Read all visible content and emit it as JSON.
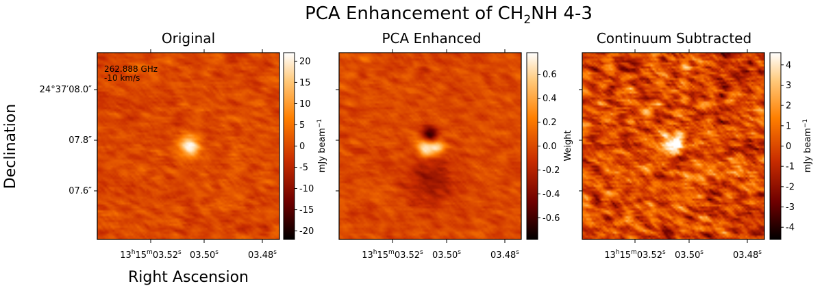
{
  "figure": {
    "title_prefix": "PCA Enhancement of CH",
    "title_sub": "2",
    "title_suffix": "NH 4-3",
    "ylabel": "Declination",
    "xlabel": "Right Ascension"
  },
  "colors": {
    "cmap": [
      "#000000",
      "#6e0000",
      "#c82c00",
      "#ff7f00",
      "#ffc97a",
      "#ffffff"
    ],
    "background_level": 0.56
  },
  "annotation": {
    "line1": "262.888 GHz",
    "line2": "-10 km/s"
  },
  "ra_ticks": {
    "major": {
      "h": "13",
      "m": "15",
      "s": "03.52",
      "hu": "h",
      "mu": "m",
      "su": "s"
    },
    "minor": [
      {
        "v": "03.50",
        "su": "s"
      },
      {
        "v": "03.48",
        "su": "s"
      }
    ]
  },
  "dec_ticks": [
    "24°37′08.0″",
    "07.8″",
    "07.6″"
  ],
  "chart_data": [
    {
      "type": "heatmap",
      "title": "Original",
      "colorbar_label": "mJy beam",
      "colorbar_label_sup": "−1",
      "clim": [
        -22,
        22
      ],
      "colorbar_ticks": [
        "20",
        "15",
        "10",
        "5",
        "0",
        "-5",
        "-10",
        "-15",
        "-20"
      ],
      "colorbar_tick_values": [
        20,
        15,
        10,
        5,
        0,
        -5,
        -10,
        -15,
        -20
      ],
      "noise_rms": 1.6,
      "sources": [
        {
          "ra_offset_arcsec": -0.005,
          "dec_offset_arcsec": 0.0,
          "peak": 22,
          "fwhm_arcsec": 0.06
        }
      ]
    },
    {
      "type": "heatmap",
      "title": "PCA Enhanced",
      "colorbar_label": "Weight",
      "colorbar_label_sup": "",
      "clim": [
        -0.78,
        0.78
      ],
      "colorbar_ticks": [
        "0.6",
        "0.4",
        "0.2",
        "0.0",
        "-0.2",
        "-0.4",
        "-0.6"
      ],
      "colorbar_tick_values": [
        0.6,
        0.4,
        0.2,
        0.0,
        -0.2,
        -0.4,
        -0.6
      ],
      "noise_rms": 0.05,
      "sources": [
        {
          "ra_offset_arcsec": 0.015,
          "dec_offset_arcsec": -0.005,
          "peak": 0.78,
          "fwhm_arcsec": 0.05
        },
        {
          "ra_offset_arcsec": -0.025,
          "dec_offset_arcsec": -0.002,
          "peak": 0.55,
          "fwhm_arcsec": 0.045
        },
        {
          "ra_offset_arcsec": 0.0,
          "dec_offset_arcsec": 0.04,
          "peak": -0.78,
          "fwhm_arcsec": 0.045
        },
        {
          "ra_offset_arcsec": -0.01,
          "dec_offset_arcsec": -0.12,
          "peak": -0.3,
          "fwhm_arcsec": 0.14
        }
      ]
    },
    {
      "type": "heatmap",
      "title": "Continuum Subtracted",
      "colorbar_label": "mJy beam",
      "colorbar_label_sup": "−1",
      "clim": [
        -4.6,
        4.6
      ],
      "colorbar_ticks": [
        "4",
        "3",
        "2",
        "1",
        "0",
        "-1",
        "-2",
        "-3",
        "-4"
      ],
      "colorbar_tick_values": [
        4,
        3,
        2,
        1,
        0,
        -1,
        -2,
        -3,
        -4
      ],
      "noise_rms": 1.1,
      "sources": [
        {
          "ra_offset_arcsec": 0.012,
          "dec_offset_arcsec": -0.005,
          "peak": 4.2,
          "fwhm_arcsec": 0.055
        },
        {
          "ra_offset_arcsec": -0.018,
          "dec_offset_arcsec": 0.01,
          "peak": 3.6,
          "fwhm_arcsec": 0.045
        }
      ]
    }
  ]
}
